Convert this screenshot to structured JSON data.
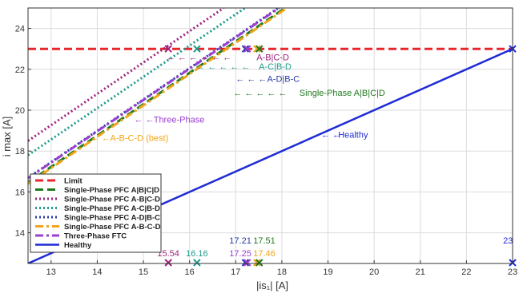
{
  "chart_data": {
    "type": "line",
    "xlabel": "|is₁| [A]",
    "ylabel": "i max [A]",
    "xlim": [
      12.5,
      23
    ],
    "ylim": [
      12.5,
      25
    ],
    "x_ticks": [
      13,
      14,
      15,
      16,
      17,
      18,
      19,
      20,
      21,
      22,
      23
    ],
    "y_ticks": [
      14,
      16,
      18,
      20,
      22,
      24
    ],
    "grid": true,
    "legend_position": "bottom-left",
    "series": [
      {
        "name": "Limit",
        "color": "#e8262b",
        "dash": "dashed",
        "width": 3,
        "points": [
          [
            12.5,
            23
          ],
          [
            23,
            23
          ]
        ]
      },
      {
        "name": "Single-Phase PFC A|B|C|D",
        "color": "#1f7a1f",
        "dash": "dashed",
        "width": 3,
        "points": [
          [
            12.5,
            16.46
          ],
          [
            18.07,
            25
          ]
        ]
      },
      {
        "name": "Single-Phase PFC A-B|C-D",
        "color": "#a0207e",
        "dash": "dotted",
        "width": 3,
        "points": [
          [
            12.5,
            18.5
          ],
          [
            16.74,
            25
          ]
        ]
      },
      {
        "name": "Single-Phase PFC A-C|B-D",
        "color": "#1f9a8c",
        "dash": "dotted",
        "width": 3,
        "points": [
          [
            12.5,
            17.8
          ],
          [
            17.2,
            25
          ]
        ]
      },
      {
        "name": "Single-Phase PFC A-D|B-C",
        "color": "#2b3aa8",
        "dash": "dotted",
        "width": 3,
        "points": [
          [
            12.5,
            16.69
          ],
          [
            17.92,
            25
          ]
        ]
      },
      {
        "name": "Single-Phase PFC A-B-C-D",
        "color": "#f2a51a",
        "dash": "dashdot",
        "width": 3,
        "points": [
          [
            12.5,
            16.4
          ],
          [
            18.11,
            25
          ]
        ]
      },
      {
        "name": "Three-Phase FTC",
        "color": "#9b3fd1",
        "dash": "dashdot",
        "width": 3,
        "points": [
          [
            12.5,
            16.67
          ],
          [
            17.94,
            25
          ]
        ]
      },
      {
        "name": "Healthy",
        "color": "#1f2bd6",
        "dash": "solid",
        "width": 2.5,
        "points": [
          [
            12.5,
            12.5
          ],
          [
            23,
            23
          ]
        ]
      }
    ],
    "x_markers": [
      {
        "x": 15.54,
        "color": "#a0207e"
      },
      {
        "x": 16.16,
        "color": "#1f9a8c"
      },
      {
        "x": 17.21,
        "color": "#2b3aa8"
      },
      {
        "x": 17.25,
        "color": "#9b3fd1"
      },
      {
        "x": 17.46,
        "color": "#f2a51a"
      },
      {
        "x": 17.51,
        "color": "#1f7a1f"
      },
      {
        "x": 23,
        "color": "#1f2bd6"
      }
    ],
    "limit_markers": [
      {
        "x": 15.54,
        "color": "#a0207e"
      },
      {
        "x": 16.16,
        "color": "#1f9a8c"
      },
      {
        "x": 17.21,
        "color": "#2b3aa8"
      },
      {
        "x": 17.25,
        "color": "#9b3fd1"
      },
      {
        "x": 17.46,
        "color": "#f2a51a"
      },
      {
        "x": 17.51,
        "color": "#1f7a1f"
      },
      {
        "x": 23,
        "color": "#1f2bd6"
      }
    ],
    "value_labels": [
      {
        "text": "15.54",
        "x": 15.54,
        "row": "low",
        "color": "#a0207e"
      },
      {
        "text": "16.16",
        "x": 16.16,
        "row": "low",
        "color": "#1f9a8c"
      },
      {
        "text": "17.21",
        "x": 17.1,
        "row": "high",
        "color": "#2b3aa8"
      },
      {
        "text": "17.25",
        "x": 17.1,
        "row": "low",
        "color": "#9b3fd1"
      },
      {
        "text": "17.51",
        "x": 17.62,
        "row": "high",
        "color": "#1f7a1f"
      },
      {
        "text": "17.46",
        "x": 17.62,
        "row": "low",
        "color": "#f2a51a"
      },
      {
        "text": "23",
        "x": 22.9,
        "row": "high",
        "color": "#1f2bd6"
      }
    ],
    "annotations": [
      {
        "text": "A-B|C-D",
        "x": 17.45,
        "y": 22.6,
        "color": "#a0207e",
        "arrow_text": "← ← ← ← ← ←",
        "arrow_x": 15.5
      },
      {
        "text": "A-C|B-D",
        "x": 17.5,
        "y": 22.15,
        "color": "#1f9a8c",
        "arrow_text": "← ← ← ← ←",
        "arrow_x": 16.15
      },
      {
        "text": "A-D|B-C",
        "x": 17.68,
        "y": 21.55,
        "color": "#2b3aa8",
        "arrow_text": "← ← ←",
        "arrow_x": 17.0
      },
      {
        "text": "Single-Phase A|B|C|D",
        "x": 18.38,
        "y": 20.85,
        "color": "#1f7a1f",
        "arrow_text": "← ← ← ← ←",
        "arrow_x": 16.95
      },
      {
        "text": "Three-Phase",
        "x": 15.22,
        "y": 19.55,
        "color": "#9b3fd1",
        "arrow_text": "← ←",
        "arrow_x": 14.8
      },
      {
        "text": "A-B-C-D (best)",
        "x": 14.28,
        "y": 18.65,
        "color": "#f2a51a",
        "arrow_text": "← ←",
        "arrow_x": 13.85
      },
      {
        "text": "Healthy",
        "x": 19.22,
        "y": 18.8,
        "color": "#1f2bd6",
        "arrow_text": "← ←",
        "arrow_x": 18.85
      }
    ]
  }
}
